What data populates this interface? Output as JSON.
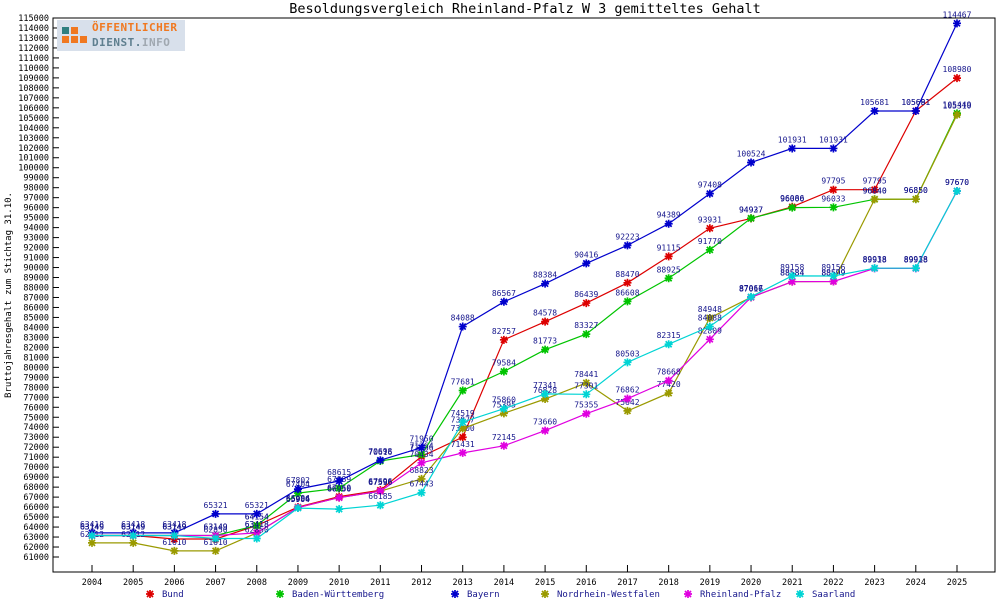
{
  "logo": {
    "line1": "ÖFFENTLICHER",
    "line2_a": "DIENST.",
    "line2_b": "INFO",
    "colors": {
      "orange": "#f07820",
      "teal": "#2f7f7f",
      "gray": "#a0a8b0",
      "bg": "#d8e0eb"
    }
  },
  "chart_data": {
    "type": "line",
    "title": "Besoldungsvergleich Rheinland-Pfalz W 3 gemitteltes Gehalt",
    "xlabel": "",
    "ylabel": "Bruttojahresgehalt zum Stichtag 31.10.",
    "ylim": [
      61000,
      115000
    ],
    "ytick_step": 1000,
    "grid": false,
    "legend_position": "bottom",
    "point_label_color": "#16168c",
    "axis_color": "#000000",
    "x": [
      2004,
      2005,
      2006,
      2007,
      2008,
      2009,
      2010,
      2011,
      2012,
      2013,
      2014,
      2015,
      2016,
      2017,
      2018,
      2019,
      2020,
      2021,
      2022,
      2023,
      2024,
      2025
    ],
    "series": [
      {
        "name": "Bund",
        "color": "#dd0000",
        "values": [
          63149,
          63149,
          62800,
          62800,
          64154,
          66004,
          67050,
          67696,
          71066,
          73000,
          82757,
          84578,
          86439,
          88470,
          91115,
          93931,
          94927,
          96086,
          97795,
          97795,
          105691,
          108980
        ],
        "label_skip": [
          2006,
          2007
        ]
      },
      {
        "name": "Baden-Württemberg",
        "color": "#00c400",
        "values": [
          63149,
          63149,
          63149,
          63149,
          64154,
          67404,
          67889,
          70616,
          71264,
          77681,
          79584,
          81773,
          83327,
          86608,
          88925,
          91770,
          94937,
          96000,
          96033,
          96840,
          96850,
          105449
        ],
        "label_skip": []
      },
      {
        "name": "Bayern",
        "color": "#0000cc",
        "values": [
          63418,
          63418,
          63418,
          65321,
          65321,
          67802,
          68615,
          70698,
          71950,
          84088,
          86567,
          88384,
          90416,
          92223,
          94389,
          97408,
          100524,
          101931,
          101931,
          105681,
          105681,
          114467
        ],
        "label_skip": []
      },
      {
        "name": "Nordrhein-Westfalen",
        "color": "#9a9a00",
        "values": [
          62412,
          62412,
          61610,
          61610,
          63418,
          65956,
          66950,
          67596,
          68823,
          73877,
          75395,
          76828,
          78441,
          75642,
          77420,
          84948,
          87016,
          88584,
          88599,
          96840,
          96850,
          105310
        ],
        "label_skip": []
      },
      {
        "name": "Rheinland-Pfalz",
        "color": "#e000e0",
        "values": [
          63149,
          63149,
          63149,
          63149,
          63418,
          65956,
          66950,
          67596,
          70434,
          71431,
          72145,
          73660,
          75355,
          76862,
          78668,
          82809,
          87016,
          88584,
          88599,
          89918,
          89918,
          97670
        ],
        "label_skip": []
      },
      {
        "name": "Saarland",
        "color": "#00d4d4",
        "values": [
          63149,
          63149,
          63149,
          62850,
          62850,
          65904,
          65800,
          66185,
          67443,
          74519,
          75860,
          77341,
          77301,
          80503,
          82315,
          84088,
          87067,
          89158,
          89156,
          89938,
          89938,
          97670
        ],
        "label_skip": [
          2010
        ]
      }
    ]
  }
}
